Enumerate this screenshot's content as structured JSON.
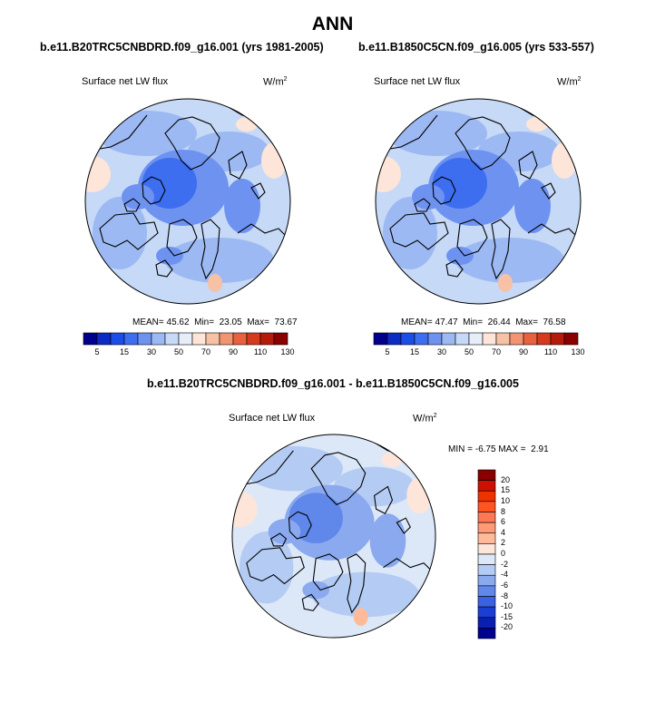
{
  "page": {
    "title": "ANN",
    "diff_heading": "b.e11.B20TRC5CNBDRD.f09_g16.001 - b.e11.B1850C5CN.f09_g16.005"
  },
  "chart_data": [
    {
      "type": "heatmap",
      "projection": "polar-stereographic-north",
      "case": "b.e11.B20TRC5CNBDRD.f09_g16.001 (yrs 1981-2005)",
      "variable": "Surface net LW flux",
      "units": "W/m",
      "units_exp": "2",
      "stats": {
        "mean_label": "MEAN=",
        "mean": "45.62",
        "min_label": "Min=",
        "min": "23.05",
        "max_label": "Max=",
        "max": "73.67"
      },
      "colorbar": {
        "levels": [
          "5",
          "15",
          "30",
          "50",
          "70",
          "90",
          "110",
          "130"
        ],
        "colors": [
          "#00008c",
          "#0b2bc4",
          "#1b4de8",
          "#3d6ef0",
          "#6e92f0",
          "#9db9f3",
          "#c6d9f6",
          "#e6eefa",
          "#fde6d9",
          "#f7c1a6",
          "#f29472",
          "#e8623f",
          "#d63a1d",
          "#b51b0a",
          "#8a0000"
        ]
      }
    },
    {
      "type": "heatmap",
      "projection": "polar-stereographic-north",
      "case": "b.e11.B1850C5CN.f09_g16.005 (yrs 533-557)",
      "variable": "Surface net LW flux",
      "units": "W/m",
      "units_exp": "2",
      "stats": {
        "mean_label": "MEAN=",
        "mean": "47.47",
        "min_label": "Min=",
        "min": "26.44",
        "max_label": "Max=",
        "max": "76.58"
      },
      "colorbar": {
        "levels": [
          "5",
          "15",
          "30",
          "50",
          "70",
          "90",
          "110",
          "130"
        ],
        "colors": [
          "#00008c",
          "#0b2bc4",
          "#1b4de8",
          "#3d6ef0",
          "#6e92f0",
          "#9db9f3",
          "#c6d9f6",
          "#e6eefa",
          "#fde6d9",
          "#f7c1a6",
          "#f29472",
          "#e8623f",
          "#d63a1d",
          "#b51b0a",
          "#8a0000"
        ]
      }
    },
    {
      "type": "heatmap",
      "projection": "polar-stereographic-north",
      "variable": "Surface net LW flux",
      "units": "W/m",
      "units_exp": "2",
      "stats": {
        "min_label": "MIN =",
        "min": "-6.75",
        "max_label": "MAX =",
        "max": "2.91"
      },
      "colorbar": {
        "levels": [
          "20",
          "15",
          "10",
          "8",
          "6",
          "4",
          "2",
          "0",
          "-2",
          "-4",
          "-6",
          "-8",
          "-10",
          "-15",
          "-20"
        ],
        "colors": [
          "#8a0000",
          "#cc1100",
          "#ee3300",
          "#ff5522",
          "#ff7755",
          "#ff9977",
          "#ffbb99",
          "#fde6d9",
          "#dce8f8",
          "#b4cbf3",
          "#8aa9ee",
          "#6087ea",
          "#3a62e2",
          "#1b3fd2",
          "#0a1fb0",
          "#000090"
        ]
      }
    }
  ]
}
